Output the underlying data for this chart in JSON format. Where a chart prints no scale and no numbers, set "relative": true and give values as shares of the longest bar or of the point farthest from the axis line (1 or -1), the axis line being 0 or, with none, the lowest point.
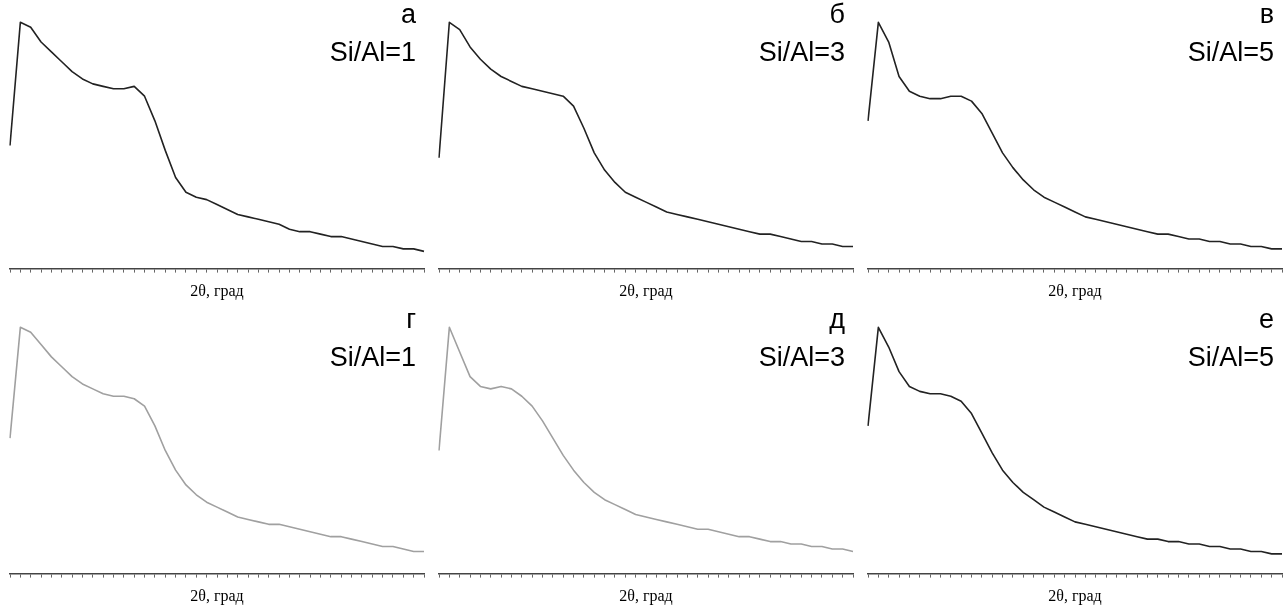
{
  "chart_data": [
    {
      "type": "line",
      "relative": true,
      "marker": "none",
      "xlabel": "2θ, град",
      "annotations": [
        "а",
        "Si/Al=1"
      ],
      "categories": [
        null,
        null,
        null,
        null,
        null,
        null,
        null,
        null,
        null,
        null,
        null,
        null,
        null,
        null,
        null,
        null,
        null,
        null,
        null,
        null,
        null,
        null,
        null,
        null,
        null,
        null,
        null,
        null,
        null,
        null,
        null,
        null,
        null,
        null,
        null,
        null,
        null,
        null,
        null,
        null,
        null
      ],
      "series": [
        {
          "color": "#222222",
          "values": [
            0.5,
            1.0,
            0.98,
            0.92,
            0.88,
            0.84,
            0.8,
            0.77,
            0.75,
            0.74,
            0.73,
            0.73,
            0.74,
            0.7,
            0.6,
            0.48,
            0.37,
            0.31,
            0.29,
            0.28,
            0.26,
            0.24,
            0.22,
            0.21,
            0.2,
            0.19,
            0.18,
            0.16,
            0.15,
            0.15,
            0.14,
            0.13,
            0.13,
            0.12,
            0.11,
            0.1,
            0.09,
            0.09,
            0.08,
            0.08,
            0.07
          ]
        }
      ]
    },
    {
      "type": "line",
      "relative": true,
      "marker": "none",
      "xlabel": "2θ, град",
      "annotations": [
        "б",
        "Si/Al=3"
      ],
      "categories": [
        null,
        null,
        null,
        null,
        null,
        null,
        null,
        null,
        null,
        null,
        null,
        null,
        null,
        null,
        null,
        null,
        null,
        null,
        null,
        null,
        null,
        null,
        null,
        null,
        null,
        null,
        null,
        null,
        null,
        null,
        null,
        null,
        null,
        null,
        null,
        null,
        null,
        null,
        null,
        null,
        null
      ],
      "series": [
        {
          "color": "#222222",
          "values": [
            0.45,
            1.0,
            0.97,
            0.9,
            0.85,
            0.81,
            0.78,
            0.76,
            0.74,
            0.73,
            0.72,
            0.71,
            0.7,
            0.66,
            0.57,
            0.47,
            0.4,
            0.35,
            0.31,
            0.29,
            0.27,
            0.25,
            0.23,
            0.22,
            0.21,
            0.2,
            0.19,
            0.18,
            0.17,
            0.16,
            0.15,
            0.14,
            0.14,
            0.13,
            0.12,
            0.11,
            0.11,
            0.1,
            0.1,
            0.09,
            0.09
          ]
        }
      ]
    },
    {
      "type": "line",
      "relative": true,
      "marker": "none",
      "xlabel": "2θ, град",
      "annotations": [
        "в",
        "Si/Al=5"
      ],
      "categories": [
        null,
        null,
        null,
        null,
        null,
        null,
        null,
        null,
        null,
        null,
        null,
        null,
        null,
        null,
        null,
        null,
        null,
        null,
        null,
        null,
        null,
        null,
        null,
        null,
        null,
        null,
        null,
        null,
        null,
        null,
        null,
        null,
        null,
        null,
        null,
        null,
        null,
        null,
        null,
        null,
        null
      ],
      "series": [
        {
          "color": "#222222",
          "values": [
            0.6,
            1.0,
            0.92,
            0.78,
            0.72,
            0.7,
            0.69,
            0.69,
            0.7,
            0.7,
            0.68,
            0.63,
            0.55,
            0.47,
            0.41,
            0.36,
            0.32,
            0.29,
            0.27,
            0.25,
            0.23,
            0.21,
            0.2,
            0.19,
            0.18,
            0.17,
            0.16,
            0.15,
            0.14,
            0.14,
            0.13,
            0.12,
            0.12,
            0.11,
            0.11,
            0.1,
            0.1,
            0.09,
            0.09,
            0.08,
            0.08
          ]
        }
      ]
    },
    {
      "type": "line",
      "relative": true,
      "marker": "none",
      "xlabel": "2θ, град",
      "annotations": [
        "г",
        "Si/Al=1"
      ],
      "categories": [
        null,
        null,
        null,
        null,
        null,
        null,
        null,
        null,
        null,
        null,
        null,
        null,
        null,
        null,
        null,
        null,
        null,
        null,
        null,
        null,
        null,
        null,
        null,
        null,
        null,
        null,
        null,
        null,
        null,
        null,
        null,
        null,
        null,
        null,
        null,
        null,
        null,
        null,
        null,
        null,
        null
      ],
      "series": [
        {
          "color": "#a0a0a0",
          "values": [
            0.55,
            1.0,
            0.98,
            0.93,
            0.88,
            0.84,
            0.8,
            0.77,
            0.75,
            0.73,
            0.72,
            0.72,
            0.71,
            0.68,
            0.6,
            0.5,
            0.42,
            0.36,
            0.32,
            0.29,
            0.27,
            0.25,
            0.23,
            0.22,
            0.21,
            0.2,
            0.2,
            0.19,
            0.18,
            0.17,
            0.16,
            0.15,
            0.15,
            0.14,
            0.13,
            0.12,
            0.11,
            0.11,
            0.1,
            0.09,
            0.09
          ]
        }
      ]
    },
    {
      "type": "line",
      "relative": true,
      "marker": "none",
      "xlabel": "2θ, град",
      "annotations": [
        "д",
        "Si/Al=3"
      ],
      "categories": [
        null,
        null,
        null,
        null,
        null,
        null,
        null,
        null,
        null,
        null,
        null,
        null,
        null,
        null,
        null,
        null,
        null,
        null,
        null,
        null,
        null,
        null,
        null,
        null,
        null,
        null,
        null,
        null,
        null,
        null,
        null,
        null,
        null,
        null,
        null,
        null,
        null,
        null,
        null,
        null,
        null
      ],
      "series": [
        {
          "color": "#a0a0a0",
          "values": [
            0.5,
            1.0,
            0.9,
            0.8,
            0.76,
            0.75,
            0.76,
            0.75,
            0.72,
            0.68,
            0.62,
            0.55,
            0.48,
            0.42,
            0.37,
            0.33,
            0.3,
            0.28,
            0.26,
            0.24,
            0.23,
            0.22,
            0.21,
            0.2,
            0.19,
            0.18,
            0.18,
            0.17,
            0.16,
            0.15,
            0.15,
            0.14,
            0.13,
            0.13,
            0.12,
            0.12,
            0.11,
            0.11,
            0.1,
            0.1,
            0.09
          ]
        }
      ]
    },
    {
      "type": "line",
      "relative": true,
      "marker": "none",
      "xlabel": "2θ, град",
      "annotations": [
        "е",
        "Si/Al=5"
      ],
      "categories": [
        null,
        null,
        null,
        null,
        null,
        null,
        null,
        null,
        null,
        null,
        null,
        null,
        null,
        null,
        null,
        null,
        null,
        null,
        null,
        null,
        null,
        null,
        null,
        null,
        null,
        null,
        null,
        null,
        null,
        null,
        null,
        null,
        null,
        null,
        null,
        null,
        null,
        null,
        null,
        null,
        null
      ],
      "series": [
        {
          "color": "#222222",
          "values": [
            0.6,
            1.0,
            0.92,
            0.82,
            0.76,
            0.74,
            0.73,
            0.73,
            0.72,
            0.7,
            0.65,
            0.57,
            0.49,
            0.42,
            0.37,
            0.33,
            0.3,
            0.27,
            0.25,
            0.23,
            0.21,
            0.2,
            0.19,
            0.18,
            0.17,
            0.16,
            0.15,
            0.14,
            0.14,
            0.13,
            0.13,
            0.12,
            0.12,
            0.11,
            0.11,
            0.1,
            0.1,
            0.09,
            0.09,
            0.08,
            0.08
          ]
        }
      ]
    }
  ]
}
